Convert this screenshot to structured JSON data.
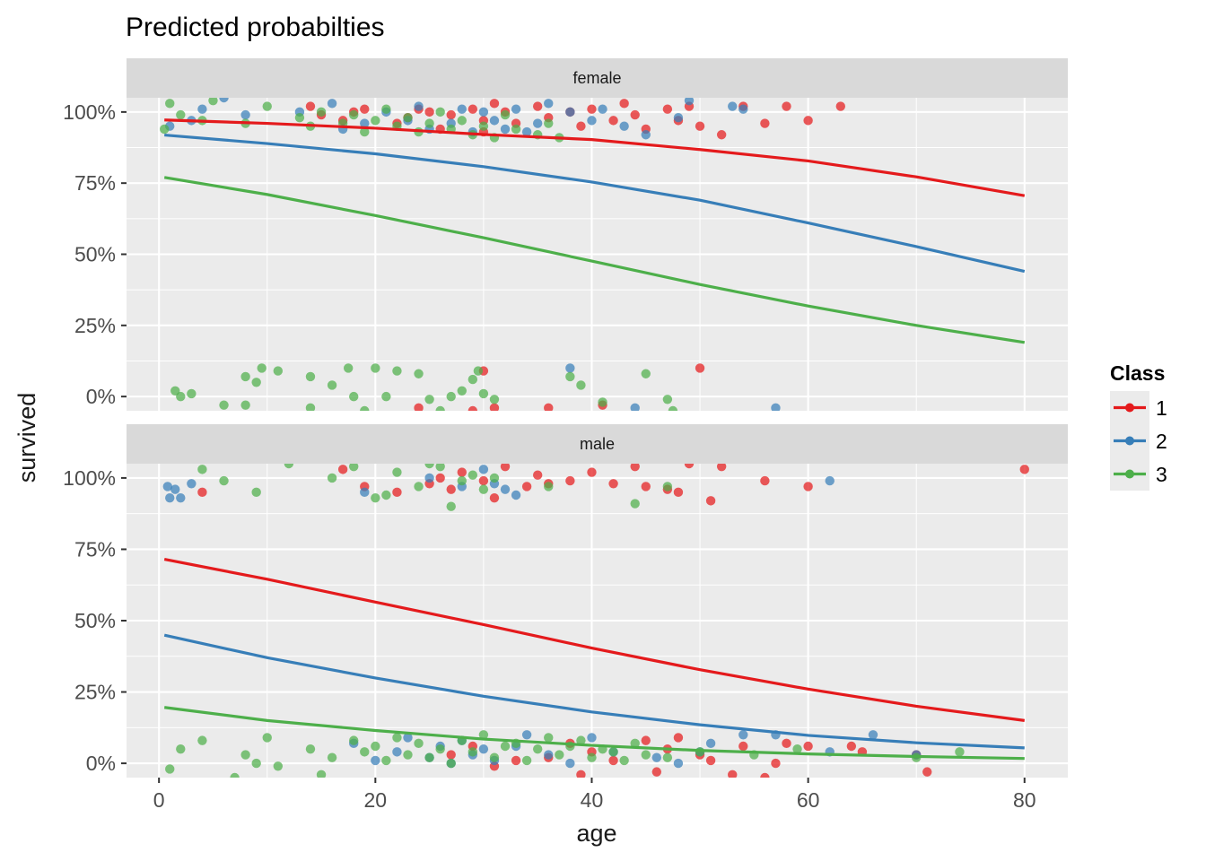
{
  "chart_data": {
    "type": "scatter",
    "title": "Predicted probabilties",
    "xlabel": "age",
    "ylabel": "survived",
    "xlim": [
      -3,
      84
    ],
    "ylim": [
      -0.05,
      1.05
    ],
    "x_ticks": [
      0,
      20,
      40,
      60,
      80
    ],
    "x_tick_labels": [
      "0",
      "20",
      "40",
      "60",
      "80"
    ],
    "y_ticks": [
      0,
      0.25,
      0.5,
      0.75,
      1.0
    ],
    "y_tick_labels": [
      "0%",
      "25%",
      "50%",
      "75%",
      "100%"
    ],
    "grid": true,
    "legend": {
      "title": "Class",
      "position": "right",
      "entries": [
        {
          "label": "1",
          "color": "#E41A1C"
        },
        {
          "label": "2",
          "color": "#377EB8"
        },
        {
          "label": "3",
          "color": "#4DAF4A"
        }
      ]
    },
    "facets": [
      {
        "label": "female",
        "lines": [
          {
            "name": "1",
            "color": "#E41A1C",
            "x": [
              0.5,
              10,
              20,
              30,
              40,
              50,
              60,
              70,
              80
            ],
            "y": [
              0.972,
              0.96,
              0.943,
              0.921,
              0.903,
              0.868,
              0.828,
              0.772,
              0.706
            ]
          },
          {
            "name": "2",
            "color": "#377EB8",
            "x": [
              0.5,
              10,
              20,
              30,
              40,
              50,
              60,
              70,
              80
            ],
            "y": [
              0.919,
              0.889,
              0.853,
              0.808,
              0.754,
              0.69,
              0.61,
              0.527,
              0.44
            ]
          },
          {
            "name": "3",
            "color": "#4DAF4A",
            "x": [
              0.5,
              10,
              20,
              30,
              40,
              50,
              60,
              70,
              80
            ],
            "y": [
              0.77,
              0.71,
              0.636,
              0.558,
              0.476,
              0.394,
              0.318,
              0.25,
              0.19
            ]
          }
        ],
        "points": [
          {
            "class": "1",
            "x": [
              14,
              15,
              17,
              18,
              19,
              22,
              23,
              24,
              25,
              26,
              27,
              29,
              30,
              30,
              31,
              32,
              33,
              35,
              36,
              38,
              39,
              40,
              42,
              43,
              44,
              45,
              47,
              48,
              49,
              50,
              52,
              54,
              56,
              58,
              60,
              63,
              24,
              29,
              30,
              31,
              36,
              41,
              50
            ],
            "y": [
              1.02,
              0.99,
              0.97,
              1.0,
              1.01,
              0.96,
              0.98,
              1.01,
              1.0,
              0.94,
              0.99,
              1.01,
              0.97,
              0.93,
              1.03,
              1.0,
              0.96,
              1.02,
              0.98,
              1.0,
              0.95,
              1.01,
              0.97,
              1.03,
              0.99,
              0.94,
              1.01,
              0.97,
              1.02,
              0.95,
              0.92,
              1.02,
              0.96,
              1.02,
              0.97,
              1.02,
              -0.04,
              -0.05,
              0.09,
              -0.04,
              -0.04,
              -0.03,
              0.1
            ]
          },
          {
            "class": "2",
            "x": [
              1,
              3,
              4,
              6,
              8,
              13,
              16,
              17,
              19,
              21,
              23,
              24,
              25,
              27,
              28,
              29,
              30,
              31,
              32,
              33,
              34,
              35,
              36,
              38,
              40,
              41,
              43,
              45,
              48,
              49,
              53,
              54,
              38,
              44,
              57
            ],
            "y": [
              0.95,
              0.97,
              1.01,
              1.05,
              0.99,
              1.0,
              1.03,
              0.94,
              0.96,
              1.0,
              0.97,
              1.02,
              0.94,
              0.96,
              1.01,
              0.93,
              1.0,
              0.97,
              0.94,
              1.01,
              0.93,
              0.96,
              1.03,
              1.0,
              0.97,
              1.01,
              0.95,
              0.92,
              0.98,
              1.04,
              1.02,
              1.01,
              0.1,
              -0.04,
              -0.04
            ],
            "note": ""
          },
          {
            "class": "3",
            "x": [
              0.5,
              1,
              2,
              4,
              5,
              8,
              10,
              13,
              14,
              15,
              17,
              18,
              19,
              20,
              21,
              22,
              23,
              24,
              25,
              26,
              27,
              28,
              29,
              30,
              31,
              32,
              33,
              35,
              36,
              37,
              1.5,
              2,
              3,
              6,
              8,
              9,
              9.5,
              11,
              14,
              16,
              17.5,
              18,
              19,
              20,
              21,
              22,
              24,
              25,
              26,
              27,
              28,
              29,
              29.5,
              30,
              31,
              38,
              39,
              41,
              45,
              47,
              47.5,
              8,
              14
            ],
            "y": [
              0.94,
              1.03,
              0.99,
              0.97,
              1.04,
              0.96,
              1.02,
              0.98,
              0.95,
              1.0,
              0.96,
              0.99,
              0.93,
              0.97,
              1.01,
              0.95,
              0.98,
              0.93,
              0.96,
              1.0,
              0.94,
              0.97,
              0.92,
              0.95,
              0.91,
              0.99,
              0.94,
              0.92,
              0.96,
              0.91,
              0.02,
              0.0,
              0.01,
              -0.03,
              0.07,
              0.05,
              0.1,
              0.09,
              0.07,
              0.04,
              0.1,
              0.0,
              -0.05,
              0.1,
              0.0,
              0.09,
              0.08,
              -0.01,
              -0.05,
              0.0,
              0.02,
              0.06,
              0.09,
              0.01,
              -0.01,
              0.07,
              0.04,
              -0.02,
              0.08,
              -0.01,
              -0.05,
              -0.03,
              -0.04
            ]
          }
        ]
      },
      {
        "label": "male",
        "lines": [
          {
            "name": "1",
            "color": "#E41A1C",
            "x": [
              0.5,
              10,
              20,
              30,
              40,
              50,
              60,
              70,
              80
            ],
            "y": [
              0.715,
              0.645,
              0.565,
              0.486,
              0.404,
              0.328,
              0.26,
              0.2,
              0.15
            ]
          },
          {
            "name": "2",
            "color": "#377EB8",
            "x": [
              0.5,
              10,
              20,
              30,
              40,
              50,
              60,
              70,
              80
            ],
            "y": [
              0.449,
              0.37,
              0.299,
              0.235,
              0.18,
              0.135,
              0.098,
              0.072,
              0.054
            ]
          },
          {
            "name": "3",
            "color": "#4DAF4A",
            "x": [
              0.5,
              10,
              20,
              30,
              40,
              50,
              60,
              70,
              80
            ],
            "y": [
              0.196,
              0.15,
              0.115,
              0.085,
              0.063,
              0.045,
              0.033,
              0.024,
              0.017
            ]
          }
        ],
        "points": [
          {
            "class": "1",
            "x": [
              4,
              17,
              19,
              22,
              25,
              26,
              27,
              28,
              30,
              31,
              32,
              34,
              35,
              36,
              38,
              40,
              42,
              44,
              45,
              47,
              48,
              49,
              51,
              52,
              56,
              60,
              80,
              27,
              29,
              33,
              36,
              38,
              40,
              42,
              45,
              47,
              48,
              50,
              51,
              54,
              57,
              58,
              60,
              64,
              65,
              70,
              71,
              31,
              39,
              46,
              53,
              56
            ],
            "y": [
              0.95,
              1.03,
              0.97,
              0.95,
              0.98,
              1.0,
              0.96,
              1.02,
              0.99,
              0.93,
              1.04,
              0.97,
              1.01,
              0.98,
              0.99,
              1.02,
              0.98,
              1.04,
              0.97,
              0.96,
              0.95,
              1.05,
              0.92,
              1.04,
              0.99,
              0.97,
              1.03,
              0.03,
              0.06,
              0.01,
              0.02,
              0.07,
              0.04,
              0.01,
              0.08,
              0.05,
              0.09,
              0.03,
              0.01,
              0.06,
              0.0,
              0.07,
              0.06,
              0.06,
              0.04,
              0.03,
              -0.03,
              -0.01,
              -0.04,
              -0.03,
              -0.04,
              -0.05
            ]
          },
          {
            "class": "2",
            "x": [
              0.8,
              1,
              1.5,
              2,
              3,
              19,
              25,
              28,
              30,
              31,
              32,
              33,
              62,
              18,
              20,
              22,
              23,
              25,
              26,
              27,
              28,
              29,
              30,
              31,
              33,
              34,
              36,
              38,
              40,
              42,
              46,
              48,
              50,
              51,
              54,
              57,
              62,
              66,
              70
            ],
            "y": [
              0.97,
              0.93,
              0.96,
              0.93,
              0.98,
              0.95,
              1.0,
              0.97,
              1.03,
              0.98,
              0.96,
              0.94,
              0.99,
              0.07,
              0.01,
              0.04,
              0.09,
              0.02,
              0.06,
              0.0,
              0.08,
              0.03,
              0.05,
              0.01,
              0.06,
              0.1,
              0.03,
              0.0,
              0.09,
              0.04,
              0.02,
              0.0,
              0.04,
              0.07,
              0.1,
              0.1,
              0.04,
              0.1,
              0.03
            ]
          },
          {
            "class": "3",
            "x": [
              4,
              6,
              9,
              12,
              16,
              18,
              20,
              21,
              22,
              24,
              25,
              26,
              27,
              28,
              29,
              30,
              31,
              36,
              44,
              47,
              1,
              2,
              4,
              8,
              9,
              10,
              11,
              14,
              16,
              18,
              19,
              20,
              21,
              22,
              23,
              24,
              25,
              26,
              27,
              28,
              29,
              30,
              31,
              32,
              33,
              34,
              35,
              36,
              37,
              38,
              39,
              40,
              41,
              42,
              43,
              44,
              45,
              47,
              50,
              55,
              59,
              70,
              74,
              7,
              15
            ],
            "y": [
              1.03,
              0.99,
              0.95,
              1.05,
              1.0,
              1.04,
              0.93,
              0.94,
              1.02,
              0.97,
              1.05,
              1.04,
              0.9,
              0.99,
              1.01,
              0.96,
              1.0,
              0.97,
              0.91,
              0.97,
              -0.02,
              0.05,
              0.08,
              0.03,
              0.0,
              0.09,
              -0.01,
              0.05,
              0.02,
              0.08,
              0.04,
              0.06,
              0.01,
              0.09,
              0.03,
              0.07,
              0.02,
              0.05,
              0.0,
              0.08,
              0.04,
              0.1,
              0.02,
              0.06,
              0.07,
              0.01,
              0.05,
              0.09,
              0.03,
              0.06,
              0.08,
              0.02,
              0.05,
              0.04,
              0.01,
              0.07,
              0.03,
              0.02,
              0.04,
              0.03,
              0.05,
              0.02,
              0.04,
              -0.05,
              -0.04
            ]
          }
        ]
      }
    ]
  }
}
